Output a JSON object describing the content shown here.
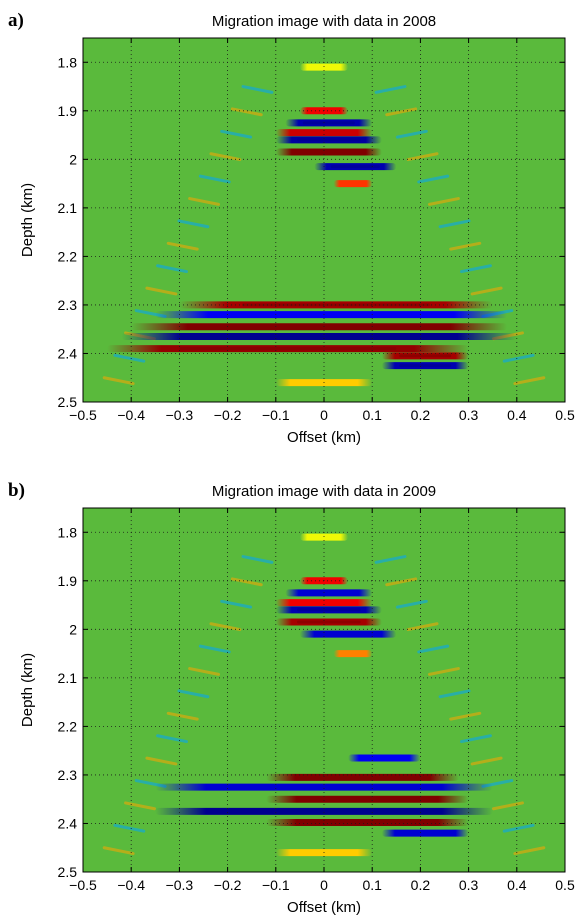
{
  "colormap": {
    "name": "jet",
    "background": "#5aba3c",
    "stops": [
      "#00008f",
      "#0000ff",
      "#00ffff",
      "#5aba3c",
      "#ffff00",
      "#ff0000",
      "#800000"
    ]
  },
  "chart_data": [
    {
      "type": "heatmap",
      "panel_label": "a)",
      "title": "Migration image with data in 2008",
      "xlabel": "Offset (km)",
      "ylabel": "Depth (km)",
      "xlim": [
        -0.5,
        0.5
      ],
      "ylim": [
        2.5,
        1.75
      ],
      "y_reversed": true,
      "grid": true,
      "xticks": [
        -0.5,
        -0.4,
        -0.3,
        -0.2,
        -0.1,
        0,
        0.1,
        0.2,
        0.3,
        0.4,
        0.5
      ],
      "xtick_labels": [
        "−0.5",
        "−0.4",
        "−0.3",
        "−0.2",
        "−0.1",
        "0",
        "0.1",
        "0.2",
        "0.3",
        "0.4",
        "0.5"
      ],
      "yticks": [
        1.8,
        1.9,
        2.0,
        2.1,
        2.2,
        2.3,
        2.4,
        2.5
      ],
      "ytick_labels": [
        "1.8",
        "1.9",
        "2",
        "2.1",
        "2.2",
        "2.3",
        "2.4",
        "2.5"
      ],
      "aperture_half_width_km": {
        "top": 0.12,
        "bottom": 0.48
      },
      "reflectors": [
        {
          "depth": 1.81,
          "x_range": [
            -0.05,
            0.05
          ],
          "amplitude": 0.3
        },
        {
          "depth": 1.9,
          "x_range": [
            -0.05,
            0.05
          ],
          "amplitude": 0.7
        },
        {
          "depth": 1.925,
          "x_range": [
            -0.08,
            0.1
          ],
          "amplitude": -0.9
        },
        {
          "depth": 1.945,
          "x_range": [
            -0.1,
            0.1
          ],
          "amplitude": 0.8
        },
        {
          "depth": 1.96,
          "x_range": [
            -0.1,
            0.12
          ],
          "amplitude": -0.95
        },
        {
          "depth": 1.985,
          "x_range": [
            -0.1,
            0.12
          ],
          "amplitude": 1.0
        },
        {
          "depth": 2.015,
          "x_range": [
            -0.02,
            0.15
          ],
          "amplitude": -0.9
        },
        {
          "depth": 2.05,
          "x_range": [
            0.02,
            0.1
          ],
          "amplitude": 0.6
        },
        {
          "depth": 2.3,
          "x_range": [
            -0.3,
            0.35
          ],
          "amplitude": 0.9
        },
        {
          "depth": 2.32,
          "x_range": [
            -0.35,
            0.38
          ],
          "amplitude": -0.7
        },
        {
          "depth": 2.345,
          "x_range": [
            -0.4,
            0.38
          ],
          "amplitude": 1.0
        },
        {
          "depth": 2.365,
          "x_range": [
            -0.42,
            0.4
          ],
          "amplitude": -1.0
        },
        {
          "depth": 2.39,
          "x_range": [
            -0.45,
            0.3
          ],
          "amplitude": 0.95
        },
        {
          "depth": 2.405,
          "x_range": [
            0.12,
            0.3
          ],
          "amplitude": 0.9
        },
        {
          "depth": 2.425,
          "x_range": [
            0.12,
            0.3
          ],
          "amplitude": -0.9
        },
        {
          "depth": 2.46,
          "x_range": [
            -0.1,
            0.1
          ],
          "amplitude": 0.4
        }
      ]
    },
    {
      "type": "heatmap",
      "panel_label": "b)",
      "title": "Migration image with data in 2009",
      "xlabel": "Offset (km)",
      "ylabel": "Depth (km)",
      "xlim": [
        -0.5,
        0.5
      ],
      "ylim": [
        2.5,
        1.75
      ],
      "y_reversed": true,
      "grid": true,
      "xticks": [
        -0.5,
        -0.4,
        -0.3,
        -0.2,
        -0.1,
        0,
        0.1,
        0.2,
        0.3,
        0.4,
        0.5
      ],
      "xtick_labels": [
        "−0.5",
        "−0.4",
        "−0.3",
        "−0.2",
        "−0.1",
        "0",
        "0.1",
        "0.2",
        "0.3",
        "0.4",
        "0.5"
      ],
      "yticks": [
        1.8,
        1.9,
        2.0,
        2.1,
        2.2,
        2.3,
        2.4,
        2.5
      ],
      "ytick_labels": [
        "1.8",
        "1.9",
        "2",
        "2.1",
        "2.2",
        "2.3",
        "2.4",
        "2.5"
      ],
      "aperture_half_width_km": {
        "top": 0.12,
        "bottom": 0.48
      },
      "reflectors": [
        {
          "depth": 1.81,
          "x_range": [
            -0.05,
            0.05
          ],
          "amplitude": 0.3
        },
        {
          "depth": 1.9,
          "x_range": [
            -0.05,
            0.05
          ],
          "amplitude": 0.7
        },
        {
          "depth": 1.925,
          "x_range": [
            -0.08,
            0.1
          ],
          "amplitude": -0.8
        },
        {
          "depth": 1.945,
          "x_range": [
            -0.1,
            0.1
          ],
          "amplitude": 0.7
        },
        {
          "depth": 1.96,
          "x_range": [
            -0.1,
            0.12
          ],
          "amplitude": -0.9
        },
        {
          "depth": 1.985,
          "x_range": [
            -0.1,
            0.12
          ],
          "amplitude": 0.9
        },
        {
          "depth": 2.01,
          "x_range": [
            -0.05,
            0.15
          ],
          "amplitude": -0.8
        },
        {
          "depth": 2.05,
          "x_range": [
            0.02,
            0.1
          ],
          "amplitude": 0.5
        },
        {
          "depth": 2.265,
          "x_range": [
            0.05,
            0.2
          ],
          "amplitude": -0.7
        },
        {
          "depth": 2.305,
          "x_range": [
            -0.12,
            0.28
          ],
          "amplitude": 1.0
        },
        {
          "depth": 2.325,
          "x_range": [
            -0.35,
            0.35
          ],
          "amplitude": -0.8
        },
        {
          "depth": 2.35,
          "x_range": [
            -0.12,
            0.3
          ],
          "amplitude": 1.0
        },
        {
          "depth": 2.375,
          "x_range": [
            -0.35,
            0.35
          ],
          "amplitude": -1.0
        },
        {
          "depth": 2.398,
          "x_range": [
            -0.12,
            0.3
          ],
          "amplitude": 1.0
        },
        {
          "depth": 2.42,
          "x_range": [
            0.12,
            0.3
          ],
          "amplitude": -0.8
        },
        {
          "depth": 2.46,
          "x_range": [
            -0.1,
            0.1
          ],
          "amplitude": 0.4
        }
      ]
    }
  ]
}
